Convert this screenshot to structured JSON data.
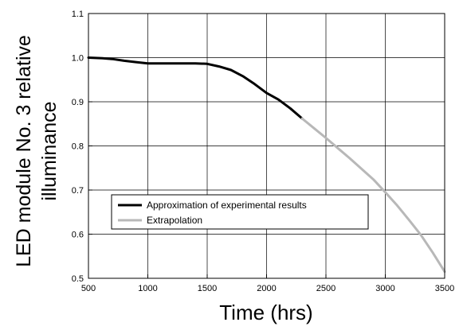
{
  "chart_data": {
    "type": "line",
    "xlabel": "Time (hrs)",
    "ylabel_line1": "LED module No. 3 relative",
    "ylabel_line2": "illuminance",
    "xlim": [
      500,
      3500
    ],
    "ylim": [
      0.5,
      1.1
    ],
    "x_ticks": [
      500,
      1000,
      1500,
      2000,
      2500,
      3000,
      3500
    ],
    "y_ticks": [
      0.5,
      0.6,
      0.7,
      0.8,
      0.9,
      1.0,
      1.1
    ],
    "x_tick_labels": [
      "500",
      "1000",
      "1500",
      "2000",
      "2500",
      "3000",
      "3500"
    ],
    "y_tick_labels": [
      "0.5",
      "0.6",
      "0.7",
      "0.8",
      "0.9",
      "1.0",
      "1.1"
    ],
    "grid": true,
    "legend_position": "lower-left",
    "series": [
      {
        "name": "Approximation of experimental results",
        "color": "#000000",
        "points": [
          [
            500,
            1.0
          ],
          [
            600,
            0.999
          ],
          [
            700,
            0.997
          ],
          [
            800,
            0.993
          ],
          [
            900,
            0.99
          ],
          [
            1000,
            0.987
          ],
          [
            1100,
            0.987
          ],
          [
            1200,
            0.987
          ],
          [
            1300,
            0.987
          ],
          [
            1400,
            0.987
          ],
          [
            1500,
            0.986
          ],
          [
            1600,
            0.98
          ],
          [
            1700,
            0.972
          ],
          [
            1800,
            0.958
          ],
          [
            1900,
            0.94
          ],
          [
            2000,
            0.92
          ],
          [
            2100,
            0.905
          ],
          [
            2200,
            0.885
          ],
          [
            2300,
            0.862
          ]
        ]
      },
      {
        "name": "Extrapolation",
        "color": "#b8b8b8",
        "points": [
          [
            2300,
            0.862
          ],
          [
            2400,
            0.84
          ],
          [
            2500,
            0.818
          ],
          [
            2600,
            0.795
          ],
          [
            2700,
            0.772
          ],
          [
            2800,
            0.748
          ],
          [
            2900,
            0.724
          ],
          [
            3000,
            0.695
          ],
          [
            3100,
            0.665
          ],
          [
            3200,
            0.632
          ],
          [
            3300,
            0.598
          ],
          [
            3400,
            0.558
          ],
          [
            3500,
            0.515
          ]
        ]
      }
    ]
  }
}
